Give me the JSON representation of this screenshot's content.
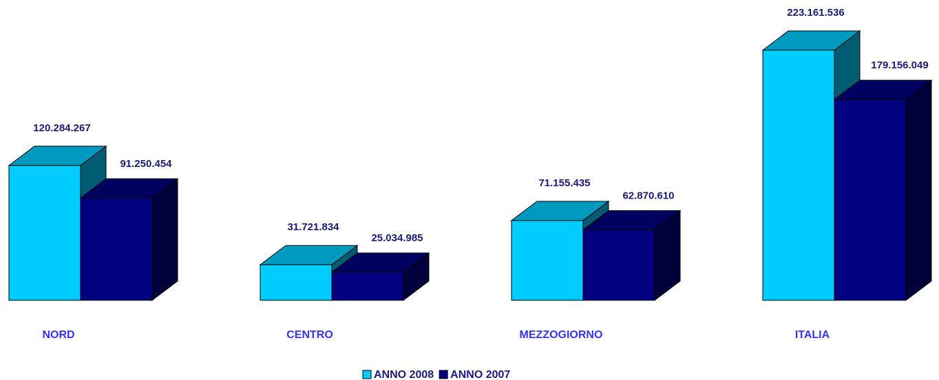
{
  "chart_data": {
    "type": "bar3d",
    "categories": [
      "NORD",
      "CENTRO",
      "MEZZOGIORNO",
      "ITALIA"
    ],
    "series": [
      {
        "name": "ANNO 2008",
        "color": "#00ccff",
        "values": [
          120284267,
          31721834,
          71155435,
          223161536
        ],
        "value_labels": [
          "120.284.267",
          "31.721.834",
          "71.155.435",
          "223.161.536"
        ]
      },
      {
        "name": "ANNO 2007",
        "color": "#000080",
        "values": [
          91250454,
          25034985,
          62870610,
          179156049
        ],
        "value_labels": [
          "91.250.454",
          "25.034.985",
          "62.870.610",
          "179.156.049"
        ]
      }
    ]
  }
}
